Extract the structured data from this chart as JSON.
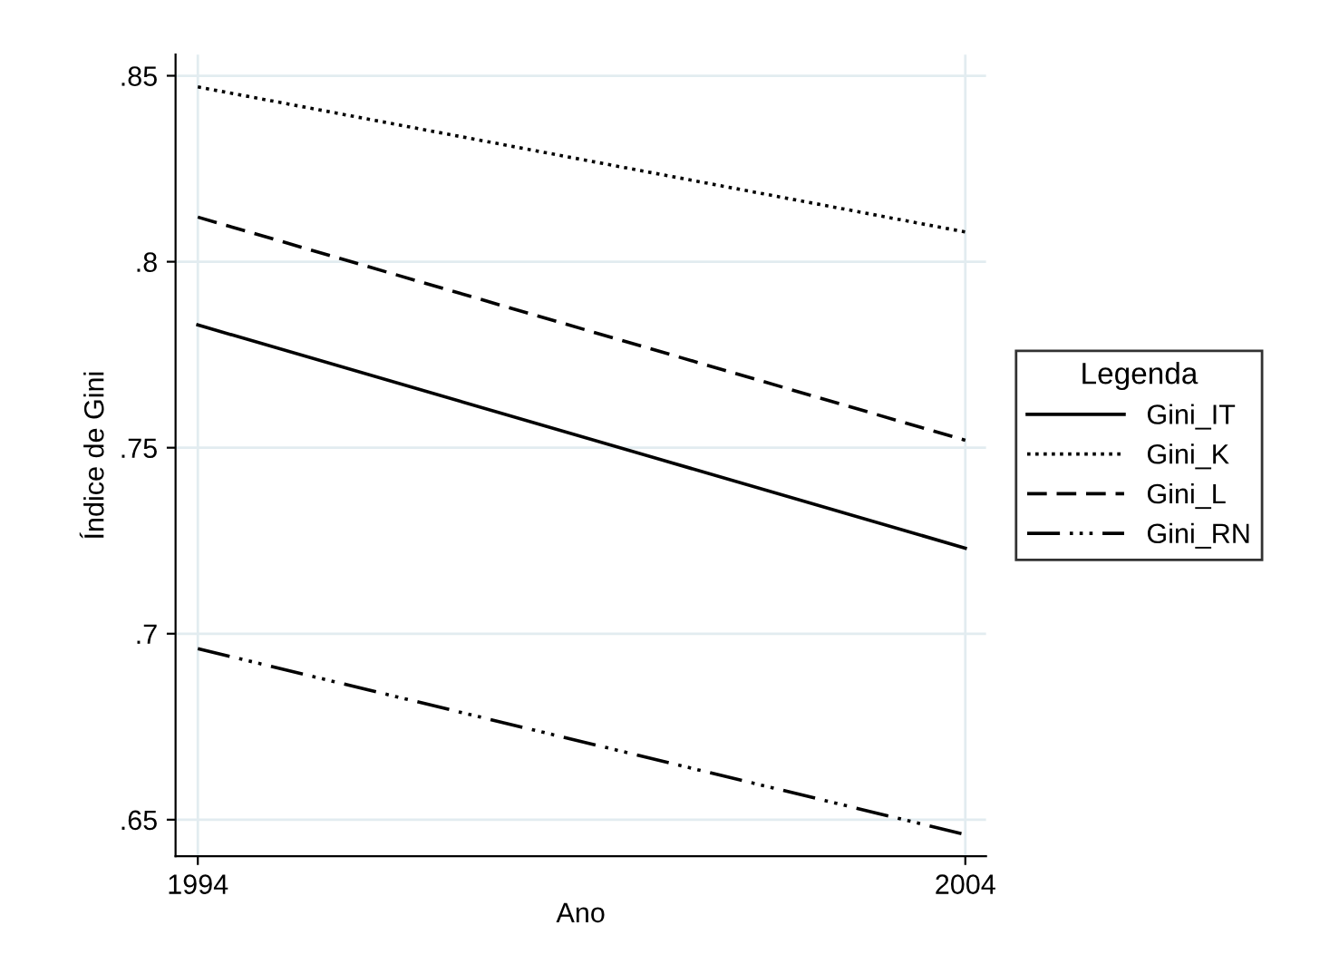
{
  "chart_data": {
    "type": "line",
    "xlabel": "Ano",
    "ylabel": "Índice de Gini",
    "legend_title": "Legenda",
    "x": [
      1994,
      2004
    ],
    "series": [
      {
        "name": "Gini_IT",
        "color": "#000000",
        "values": [
          0.783,
          0.723
        ],
        "line_style": "solid"
      },
      {
        "name": "Gini_K",
        "color": "#000000",
        "values": [
          0.847,
          0.808
        ],
        "line_style": "dotted"
      },
      {
        "name": "Gini_L",
        "color": "#000000",
        "values": [
          0.812,
          0.752
        ],
        "line_style": "dashed"
      },
      {
        "name": "Gini_RN",
        "color": "#000000",
        "values": [
          0.696,
          0.646
        ],
        "line_style": "dashdotdot"
      }
    ],
    "xlim": [
      1993.71,
      2004.27
    ],
    "xticks": [
      1994,
      2004
    ],
    "ylim": [
      0.6402,
      0.8557
    ],
    "yticks": [
      {
        "value": 0.65,
        "label": ".65"
      },
      {
        "value": 0.7,
        "label": ".7"
      },
      {
        "value": 0.75,
        "label": ".75"
      },
      {
        "value": 0.8,
        "label": ".8"
      },
      {
        "value": 0.85,
        "label": ".85"
      }
    ],
    "grid": true,
    "legend": "right",
    "marker": "none"
  }
}
